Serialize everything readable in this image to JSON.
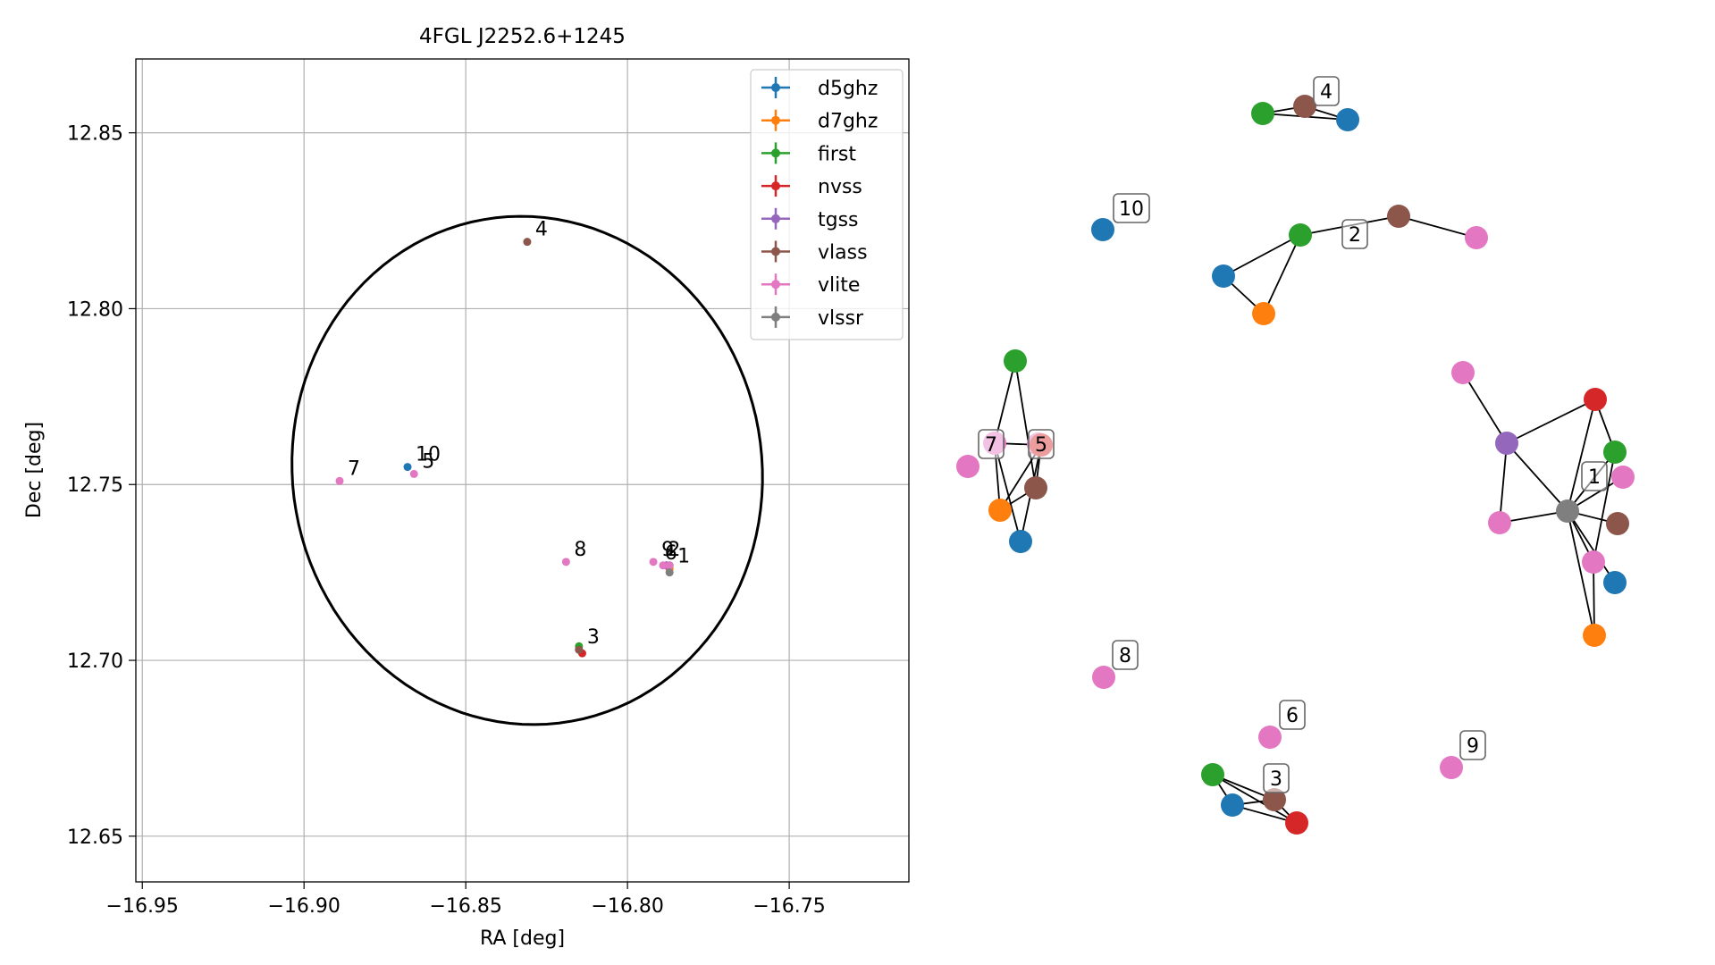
{
  "chart_data": [
    {
      "type": "scatter",
      "title": "4FGL J2252.6+1245",
      "xlabel": "RA [deg]",
      "ylabel": "Dec [deg]",
      "xlim": [
        -16.952,
        -16.713
      ],
      "ylim": [
        12.637,
        12.871
      ],
      "xticks": [
        -16.95,
        -16.9,
        -16.85,
        -16.8,
        -16.75
      ],
      "xtick_labels": [
        "−16.95",
        "−16.90",
        "−16.85",
        "−16.80",
        "−16.75"
      ],
      "yticks": [
        12.65,
        12.7,
        12.75,
        12.8,
        12.85
      ],
      "ytick_labels": [
        "12.65",
        "12.70",
        "12.75",
        "12.80",
        "12.85"
      ],
      "grid": true,
      "legend_position": "top-right",
      "series": [
        {
          "name": "d5ghz",
          "color": "#1f77b4",
          "points": [
            [
              -16.868,
              12.755
            ],
            [
              -16.815,
              12.703
            ],
            [
              -16.787,
              12.727
            ]
          ]
        },
        {
          "name": "d7ghz",
          "color": "#ff7f0e",
          "points": [
            [
              -16.787,
              12.726
            ]
          ]
        },
        {
          "name": "first",
          "color": "#2ca02c",
          "points": [
            [
              -16.815,
              12.704
            ],
            [
              -16.787,
              12.727
            ]
          ]
        },
        {
          "name": "nvss",
          "color": "#d62728",
          "points": [
            [
              -16.814,
              12.702
            ],
            [
              -16.788,
              12.727
            ]
          ]
        },
        {
          "name": "tgss",
          "color": "#9467bd",
          "points": [
            [
              -16.788,
              12.727
            ]
          ]
        },
        {
          "name": "vlass",
          "color": "#8c564b",
          "points": [
            [
              -16.831,
              12.819
            ],
            [
              -16.815,
              12.703
            ]
          ]
        },
        {
          "name": "vlite",
          "color": "#e377c2",
          "points": [
            [
              -16.889,
              12.751
            ],
            [
              -16.866,
              12.753
            ],
            [
              -16.819,
              12.728
            ],
            [
              -16.792,
              12.728
            ],
            [
              -16.789,
              12.727
            ],
            [
              -16.787,
              12.727
            ]
          ]
        },
        {
          "name": "vlssr",
          "color": "#7f7f7f",
          "points": [
            [
              -16.787,
              12.725
            ]
          ]
        }
      ],
      "ellipse": {
        "center": [
          -16.831,
          12.754
        ],
        "ra_radius": 0.0735,
        "dec_radius": 0.0715,
        "tilt_deg": -38
      },
      "annotations": [
        {
          "text": "4",
          "x": -16.831,
          "y": 12.819
        },
        {
          "text": "10",
          "x": -16.868,
          "y": 12.755
        },
        {
          "text": "5",
          "x": -16.866,
          "y": 12.753
        },
        {
          "text": "7",
          "x": -16.889,
          "y": 12.751
        },
        {
          "text": "8",
          "x": -16.819,
          "y": 12.728
        },
        {
          "text": "9",
          "x": -16.792,
          "y": 12.728
        },
        {
          "text": "6",
          "x": -16.791,
          "y": 12.727
        },
        {
          "text": "2",
          "x": -16.79,
          "y": 12.728
        },
        {
          "text": "1",
          "x": -16.787,
          "y": 12.726
        },
        {
          "text": "3",
          "x": -16.815,
          "y": 12.703
        }
      ]
    },
    {
      "type": "network",
      "node_colors": {
        "blue": "#1f77b4",
        "orange": "#ff7f0e",
        "green": "#2ca02c",
        "red": "#d62728",
        "purple": "#9467bd",
        "brown": "#8c564b",
        "pink": "#e377c2",
        "gray": "#7f7f7f"
      },
      "nodes": [
        {
          "id": "n4g",
          "color": "green"
        },
        {
          "id": "n4v",
          "color": "brown"
        },
        {
          "id": "n4b",
          "color": "blue"
        },
        {
          "id": "n10b",
          "color": "blue"
        },
        {
          "id": "n2g",
          "color": "green"
        },
        {
          "id": "n2b",
          "color": "blue"
        },
        {
          "id": "n2o",
          "color": "orange"
        },
        {
          "id": "n2v",
          "color": "brown"
        },
        {
          "id": "n2p",
          "color": "pink"
        },
        {
          "id": "n7g",
          "color": "green"
        },
        {
          "id": "n7p",
          "color": "pink"
        },
        {
          "id": "n7c",
          "color": "pink"
        },
        {
          "id": "n5r",
          "color": "red"
        },
        {
          "id": "n5v",
          "color": "brown"
        },
        {
          "id": "n5o",
          "color": "orange"
        },
        {
          "id": "n5b",
          "color": "blue"
        },
        {
          "id": "n7l",
          "color": "pink"
        },
        {
          "id": "n1pt",
          "color": "pink"
        },
        {
          "id": "n1r",
          "color": "red"
        },
        {
          "id": "n1pu",
          "color": "purple"
        },
        {
          "id": "n1g",
          "color": "green"
        },
        {
          "id": "n1pr",
          "color": "pink"
        },
        {
          "id": "n1gr",
          "color": "gray"
        },
        {
          "id": "n1pl",
          "color": "pink"
        },
        {
          "id": "n1v",
          "color": "brown"
        },
        {
          "id": "n1pb",
          "color": "pink"
        },
        {
          "id": "n1b",
          "color": "blue"
        },
        {
          "id": "n1o",
          "color": "orange"
        },
        {
          "id": "n8p",
          "color": "pink"
        },
        {
          "id": "n6p",
          "color": "pink"
        },
        {
          "id": "n3g",
          "color": "green"
        },
        {
          "id": "n3b",
          "color": "blue"
        },
        {
          "id": "n3v",
          "color": "brown"
        },
        {
          "id": "n3r",
          "color": "red"
        },
        {
          "id": "n9p",
          "color": "pink"
        }
      ],
      "edges": [
        [
          "n4g",
          "n4v"
        ],
        [
          "n4v",
          "n4b"
        ],
        [
          "n4g",
          "n4b"
        ],
        [
          "n2b",
          "n2g"
        ],
        [
          "n2b",
          "n2o"
        ],
        [
          "n2g",
          "n2o"
        ],
        [
          "n2g",
          "n2v"
        ],
        [
          "n2v",
          "n2p"
        ],
        [
          "n7g",
          "n7p"
        ],
        [
          "n7g",
          "n5v"
        ],
        [
          "n7p",
          "n5r"
        ],
        [
          "n7p",
          "n5o"
        ],
        [
          "n7p",
          "n5b"
        ],
        [
          "n5r",
          "n5o"
        ],
        [
          "n5r",
          "n5b"
        ],
        [
          "n5v",
          "n5o"
        ],
        [
          "n5r",
          "n5v"
        ],
        [
          "n1pt",
          "n1pu"
        ],
        [
          "n1pu",
          "n1r"
        ],
        [
          "n1pu",
          "n1gr"
        ],
        [
          "n1pu",
          "n1pl"
        ],
        [
          "n1pl",
          "n1gr"
        ],
        [
          "n1r",
          "n1gr"
        ],
        [
          "n1g",
          "n1gr"
        ],
        [
          "n1pr",
          "n1gr"
        ],
        [
          "n1gr",
          "n1v"
        ],
        [
          "n1gr",
          "n1pb"
        ],
        [
          "n1gr",
          "n1b"
        ],
        [
          "n1gr",
          "n1o"
        ],
        [
          "n1pb",
          "n1o"
        ],
        [
          "n1g",
          "n1pb"
        ],
        [
          "n1r",
          "n1g"
        ],
        [
          "n3g",
          "n3b"
        ],
        [
          "n3g",
          "n3v"
        ],
        [
          "n3g",
          "n3r"
        ],
        [
          "n3b",
          "n3v"
        ],
        [
          "n3v",
          "n3r"
        ],
        [
          "n3b",
          "n3r"
        ]
      ],
      "labels": [
        "4",
        "10",
        "2",
        "7",
        "5",
        "1",
        "8",
        "6",
        "3",
        "9"
      ]
    }
  ]
}
